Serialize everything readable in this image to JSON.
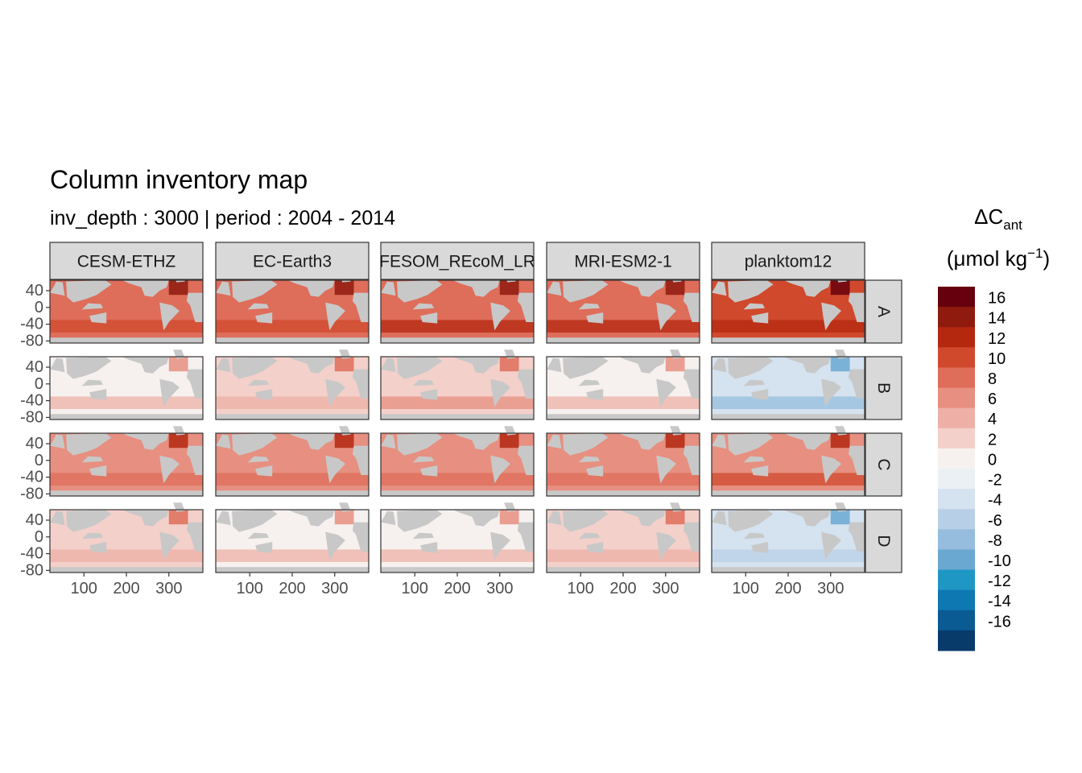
{
  "chart_data": {
    "type": "heatmap",
    "title": "Column inventory map",
    "subtitle": "inv_depth : 3000 | period : 2004 - 2014",
    "facet_columns": [
      "CESM-ETHZ",
      "EC-Earth3",
      "FESOM_REcoM_LR",
      "MRI-ESM2-1",
      "planktom12"
    ],
    "facet_rows": [
      "A",
      "B",
      "C",
      "D"
    ],
    "x_ticks": [
      100,
      200,
      300
    ],
    "y_ticks": [
      40,
      0,
      -40,
      -80
    ],
    "x_range": [
      20,
      380
    ],
    "y_range": [
      -85,
      65
    ],
    "legend": {
      "title_main": "ΔC",
      "title_sub": "ant",
      "units_prefix": "(μmol kg",
      "units_sup": "−1",
      "units_suffix": ")",
      "placement": "right",
      "labels": [
        "16",
        "14",
        "12",
        "10",
        "8",
        "6",
        "4",
        "2",
        "0",
        "-2",
        "-4",
        "-6",
        "-8",
        "-10",
        "-12",
        "-14",
        "-16"
      ],
      "colors": [
        "#67000d",
        "#8f1a0e",
        "#b42810",
        "#d0492d",
        "#de6d5a",
        "#e78f80",
        "#eeb0a6",
        "#f4d0ca",
        "#f6f1ef",
        "#ebf0f5",
        "#d5e2ef",
        "#b8d0e7",
        "#96bddd",
        "#6aa8d2",
        "#1f97c4",
        "#0e78b3",
        "#0a5a93",
        "#083a6a"
      ]
    },
    "panel_fill": {
      "A": {
        "CESM-ETHZ": 7,
        "EC-Earth3": 7,
        "FESOM_REcoM_LR": 8,
        "MRI-ESM2-1": 8,
        "planktom12": 9
      },
      "B": {
        "CESM-ETHZ": 0,
        "EC-Earth3": 1,
        "FESOM_REcoM_LR": 2,
        "MRI-ESM2-1": 0,
        "planktom12": -3
      },
      "C": {
        "CESM-ETHZ": 5,
        "EC-Earth3": 5,
        "FESOM_REcoM_LR": 5,
        "MRI-ESM2-1": 5,
        "planktom12": 6
      },
      "D": {
        "CESM-ETHZ": 1,
        "EC-Earth3": 0,
        "FESOM_REcoM_LR": 0,
        "MRI-ESM2-1": 1,
        "planktom12": -2
      }
    },
    "land_color": "#c8c8c8",
    "grid": false
  }
}
